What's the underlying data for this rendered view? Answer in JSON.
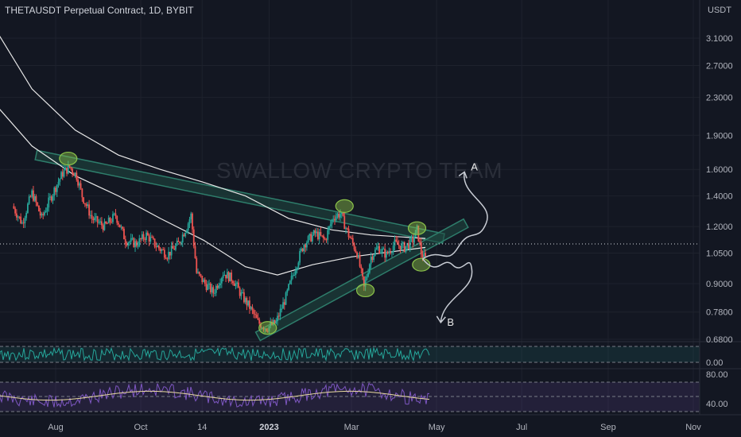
{
  "header": {
    "title": "THETAUSDT Perpetual Contract, 1D, BYBIT",
    "currency": "USDT"
  },
  "watermark": "SWALLOW CRYPTO TEAM",
  "colors": {
    "up": "#26a69a",
    "down": "#ef5350",
    "bg": "#131722",
    "channel": "#2e7d6b",
    "channel_fill": "#1f4a42",
    "circle": "#8bc34a",
    "ma": "#e8e8e8",
    "rsi": "#7e57c2"
  },
  "chart_data": {
    "type": "candlestick",
    "yscale": "log",
    "ylim": [
      0.62,
      3.4
    ],
    "price_ticks": [
      "3.1000",
      "2.7000",
      "2.3000",
      "1.9000",
      "1.6000",
      "1.4000",
      "1.2000",
      "1.0500",
      "0.9000",
      "0.7800",
      "0.6800"
    ],
    "price_tick_values": [
      3.1,
      2.7,
      2.3,
      1.9,
      1.6,
      1.4,
      1.2,
      1.05,
      0.9,
      0.78,
      0.68
    ],
    "x_ticks": [
      "Aug",
      "Oct",
      "14",
      "2023",
      "Mar",
      "May",
      "Jul",
      "Sep",
      "Nov"
    ],
    "x_tick_dates": [
      "2022-08-01",
      "2022-10-01",
      "2022-11-14",
      "2023-01-01",
      "2023-03-01",
      "2023-05-01",
      "2023-07-01",
      "2023-09-01",
      "2023-11-01"
    ],
    "bold_x_tick": "2023",
    "current_price": 1.02,
    "price_path": [
      [
        "2022-07-01",
        1.33
      ],
      [
        "2022-07-08",
        1.22
      ],
      [
        "2022-07-15",
        1.42
      ],
      [
        "2022-07-22",
        1.25
      ],
      [
        "2022-07-29",
        1.4
      ],
      [
        "2022-08-06",
        1.57
      ],
      [
        "2022-08-11",
        1.62
      ],
      [
        "2022-08-16",
        1.55
      ],
      [
        "2022-08-20",
        1.4
      ],
      [
        "2022-08-27",
        1.25
      ],
      [
        "2022-09-05",
        1.2
      ],
      [
        "2022-09-13",
        1.27
      ],
      [
        "2022-09-20",
        1.12
      ],
      [
        "2022-09-28",
        1.1
      ],
      [
        "2022-10-05",
        1.15
      ],
      [
        "2022-10-12",
        1.09
      ],
      [
        "2022-10-20",
        1.04
      ],
      [
        "2022-10-28",
        1.1
      ],
      [
        "2022-11-03",
        1.2
      ],
      [
        "2022-11-06",
        1.27
      ],
      [
        "2022-11-08",
        1.1
      ],
      [
        "2022-11-10",
        0.95
      ],
      [
        "2022-11-16",
        0.9
      ],
      [
        "2022-11-22",
        0.86
      ],
      [
        "2022-11-29",
        0.95
      ],
      [
        "2022-12-06",
        0.92
      ],
      [
        "2022-12-12",
        0.85
      ],
      [
        "2022-12-18",
        0.8
      ],
      [
        "2022-12-24",
        0.74
      ],
      [
        "2022-12-30",
        0.72
      ],
      [
        "2023-01-06",
        0.74
      ],
      [
        "2023-01-13",
        0.84
      ],
      [
        "2023-01-20",
        0.98
      ],
      [
        "2023-01-26",
        1.1
      ],
      [
        "2023-02-03",
        1.16
      ],
      [
        "2023-02-10",
        1.12
      ],
      [
        "2023-02-16",
        1.26
      ],
      [
        "2023-02-21",
        1.28
      ],
      [
        "2023-02-27",
        1.15
      ],
      [
        "2023-03-05",
        1.05
      ],
      [
        "2023-03-10",
        0.88
      ],
      [
        "2023-03-15",
        1.03
      ],
      [
        "2023-03-20",
        1.08
      ],
      [
        "2023-03-26",
        1.04
      ],
      [
        "2023-04-01",
        1.1
      ],
      [
        "2023-04-08",
        1.08
      ],
      [
        "2023-04-14",
        1.12
      ],
      [
        "2023-04-17",
        1.18
      ],
      [
        "2023-04-20",
        1.05
      ],
      [
        "2023-04-23",
        1.02
      ]
    ],
    "ma_long": [
      [
        "2022-06-20",
        3.2
      ],
      [
        "2022-07-15",
        2.4
      ],
      [
        "2022-08-15",
        1.95
      ],
      [
        "2022-09-15",
        1.72
      ],
      [
        "2022-10-15",
        1.6
      ],
      [
        "2022-11-15",
        1.5
      ],
      [
        "2022-12-15",
        1.4
      ],
      [
        "2023-01-15",
        1.25
      ],
      [
        "2023-02-15",
        1.18
      ],
      [
        "2023-03-15",
        1.15
      ],
      [
        "2023-04-23",
        1.13
      ]
    ],
    "ma_short": [
      [
        "2022-06-20",
        2.2
      ],
      [
        "2022-07-15",
        1.8
      ],
      [
        "2022-08-15",
        1.55
      ],
      [
        "2022-09-15",
        1.4
      ],
      [
        "2022-10-15",
        1.25
      ],
      [
        "2022-11-15",
        1.12
      ],
      [
        "2022-12-15",
        0.98
      ],
      [
        "2023-01-07",
        0.94
      ],
      [
        "2023-02-01",
        0.99
      ],
      [
        "2023-03-01",
        1.03
      ],
      [
        "2023-04-23",
        1.08
      ]
    ],
    "upper_trendline": [
      [
        "2022-07-18",
        1.72
      ],
      [
        "2023-05-06",
        1.13
      ]
    ],
    "lower_trendline": [
      [
        "2022-12-24",
        0.69
      ],
      [
        "2023-05-22",
        1.22
      ]
    ],
    "touch_points": [
      [
        "2022-08-10",
        1.69
      ],
      [
        "2023-02-24",
        1.33
      ],
      [
        "2023-04-17",
        1.19
      ],
      [
        "2022-12-31",
        0.72
      ],
      [
        "2023-03-11",
        0.87
      ],
      [
        "2023-04-20",
        0.99
      ]
    ],
    "scenario_a": {
      "label": "A",
      "target_date": "2023-05-21",
      "target_price": 1.58
    },
    "scenario_b": {
      "label": "B",
      "target_date": "2023-05-04",
      "target_price": 0.74
    },
    "osc1": {
      "ticks": [
        "0.00"
      ],
      "tick_values": [
        0.0
      ]
    },
    "osc2": {
      "ticks": [
        "80.00",
        "40.00"
      ],
      "tick_values": [
        80,
        40
      ]
    }
  }
}
